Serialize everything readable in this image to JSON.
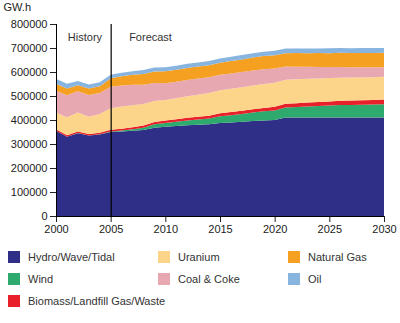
{
  "chart_data": {
    "type": "area",
    "stacked": true,
    "y_label": "GW.h",
    "x": [
      2000,
      2001,
      2002,
      2003,
      2004,
      2005,
      2006,
      2007,
      2008,
      2009,
      2010,
      2011,
      2012,
      2013,
      2014,
      2015,
      2016,
      2017,
      2018,
      2019,
      2020,
      2021,
      2022,
      2023,
      2024,
      2025,
      2026,
      2027,
      2028,
      2029,
      2030
    ],
    "xlim": [
      2000,
      2030
    ],
    "xticks": [
      2000,
      2005,
      2010,
      2015,
      2020,
      2025,
      2030
    ],
    "ylim": [
      0,
      800000
    ],
    "yticks": [
      0,
      100000,
      200000,
      300000,
      400000,
      500000,
      600000,
      700000,
      800000
    ],
    "grid": false,
    "vlines": [
      2005
    ],
    "annotations": [
      {
        "text": "History",
        "x": 2002.6,
        "y": 745000
      },
      {
        "text": "Forecast",
        "x": 2008.6,
        "y": 745000
      }
    ],
    "series": [
      {
        "name": "Hydro/Wave/Tidal",
        "color": "#2f2f88",
        "values": [
          355000,
          330000,
          345000,
          335000,
          340000,
          350000,
          352000,
          355000,
          358000,
          368000,
          372000,
          375000,
          378000,
          380000,
          382000,
          388000,
          390000,
          393000,
          396000,
          398000,
          400000,
          410000,
          410000,
          410000,
          410000,
          410000,
          410000,
          410000,
          410000,
          410000,
          410000
        ]
      },
      {
        "name": "Wind",
        "color": "#2eaa6e",
        "values": [
          500,
          600,
          700,
          800,
          1000,
          2000,
          4000,
          6000,
          10000,
          14000,
          16000,
          18000,
          20000,
          22000,
          24000,
          28000,
          30000,
          32000,
          35000,
          38000,
          40000,
          42000,
          44000,
          46000,
          48000,
          50000,
          52000,
          53000,
          54000,
          55000,
          56000
        ]
      },
      {
        "name": "Biomass/Landfill Gas/Waste",
        "color": "#e8202a",
        "values": [
          6000,
          6000,
          6000,
          6000,
          6000,
          7000,
          8000,
          8500,
          9000,
          9500,
          10000,
          10500,
          11000,
          11500,
          12000,
          12500,
          13000,
          13500,
          14000,
          14500,
          15000,
          15500,
          16000,
          16500,
          17000,
          17500,
          18000,
          18000,
          18500,
          18500,
          19000
        ]
      },
      {
        "name": "Uranium",
        "color": "#fdd58a",
        "values": [
          70000,
          75000,
          80000,
          72000,
          78000,
          90000,
          92000,
          92000,
          90000,
          88000,
          85000,
          87000,
          90000,
          92000,
          94000,
          95000,
          97000,
          98000,
          99000,
          100000,
          100000,
          100000,
          100000,
          99000,
          98000,
          97000,
          96000,
          96000,
          95000,
          95000,
          95000
        ]
      },
      {
        "name": "Coal & Coke",
        "color": "#e8a8b2",
        "values": [
          90000,
          92000,
          88000,
          90000,
          88000,
          90000,
          88000,
          85000,
          80000,
          75000,
          70000,
          69000,
          68000,
          67000,
          66000,
          65000,
          64000,
          63000,
          62000,
          61000,
          60000,
          55000,
          52000,
          50000,
          48000,
          46000,
          45000,
          43000,
          42000,
          41000,
          40000
        ]
      },
      {
        "name": "Natural Gas",
        "color": "#f5a020",
        "values": [
          30000,
          28000,
          25000,
          27000,
          28000,
          35000,
          38000,
          42000,
          45000,
          48000,
          50000,
          50000,
          50000,
          50000,
          50000,
          50000,
          52000,
          53000,
          54000,
          55000,
          55000,
          56000,
          57000,
          57000,
          58000,
          58000,
          59000,
          59000,
          60000,
          60000,
          60000
        ]
      },
      {
        "name": "Oil",
        "color": "#88b4e0",
        "values": [
          20000,
          19000,
          18000,
          17000,
          16000,
          15000,
          15000,
          15000,
          16000,
          16000,
          17000,
          17000,
          17000,
          17000,
          18000,
          18000,
          18000,
          18000,
          18000,
          18000,
          19000,
          19000,
          19000,
          19000,
          19000,
          20000,
          20000,
          20000,
          20000,
          20000,
          20000
        ]
      }
    ]
  }
}
